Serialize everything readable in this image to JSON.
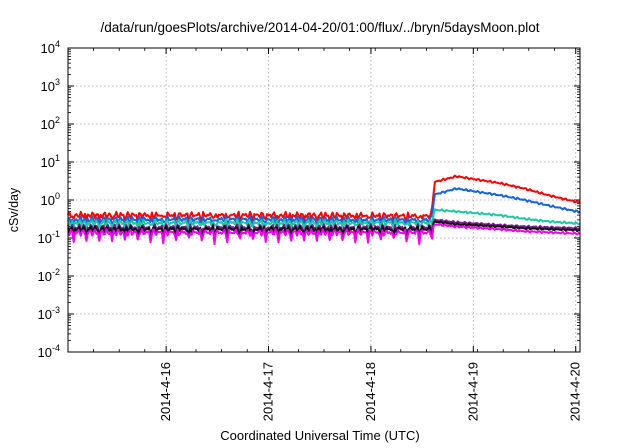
{
  "chart_data": {
    "type": "line",
    "title": "/data/run/goesPlots/archive/2014-04-20/01:00/flux/../bryn/5daysMoon.plot",
    "xlabel": "Coordinated Universal Time (UTC)",
    "ylabel": "cSv/day",
    "xlim": [
      "2014-04-15T01:00",
      "2014-04-20T01:00"
    ],
    "ylim": [
      0.0001,
      10000
    ],
    "yscale": "log",
    "grid": true,
    "x_ticks": [
      "2014-4-16",
      "2014-4-17",
      "2014-4-18",
      "2014-4-19",
      "2014-4-20"
    ],
    "y_ticks": [
      {
        "value": 0.0001,
        "base": "10",
        "exp": "-4"
      },
      {
        "value": 0.001,
        "base": "10",
        "exp": "-3"
      },
      {
        "value": 0.01,
        "base": "10",
        "exp": "-2"
      },
      {
        "value": 0.1,
        "base": "10",
        "exp": "-1"
      },
      {
        "value": 1,
        "base": "10",
        "exp": "0"
      },
      {
        "value": 10,
        "base": "10",
        "exp": "1"
      },
      {
        "value": 100,
        "base": "10",
        "exp": "2"
      },
      {
        "value": 1000,
        "base": "10",
        "exp": "3"
      },
      {
        "value": 10000,
        "base": "10",
        "exp": "4"
      }
    ],
    "series": [
      {
        "color": "#ff0000",
        "x": [
          "2014-04-15T01:00",
          "2014-04-16T00:00",
          "2014-04-17T00:00",
          "2014-04-18T00:00",
          "2014-04-18T14:00",
          "2014-04-18T15:00",
          "2014-04-18T20:00",
          "2014-04-19T06:00",
          "2014-04-19T12:00",
          "2014-04-19T18:00",
          "2014-04-20T01:00"
        ],
        "values": [
          0.4,
          0.4,
          0.4,
          0.39,
          0.38,
          3.0,
          4.2,
          2.8,
          2.0,
          1.3,
          0.85
        ]
      },
      {
        "color": "#1565e0",
        "x": [
          "2014-04-15T01:00",
          "2014-04-16T00:00",
          "2014-04-17T00:00",
          "2014-04-18T00:00",
          "2014-04-18T14:00",
          "2014-04-18T15:00",
          "2014-04-18T20:00",
          "2014-04-19T06:00",
          "2014-04-19T12:00",
          "2014-04-19T18:00",
          "2014-04-20T01:00"
        ],
        "values": [
          0.3,
          0.31,
          0.31,
          0.3,
          0.3,
          1.4,
          2.0,
          1.35,
          1.0,
          0.7,
          0.48
        ]
      },
      {
        "color": "#1ec8a0",
        "x": [
          "2014-04-15T01:00",
          "2014-04-16T00:00",
          "2014-04-17T00:00",
          "2014-04-18T00:00",
          "2014-04-18T14:00",
          "2014-04-18T15:00",
          "2014-04-18T20:00",
          "2014-04-19T06:00",
          "2014-04-19T12:00",
          "2014-04-19T18:00",
          "2014-04-20T01:00"
        ],
        "values": [
          0.25,
          0.25,
          0.25,
          0.25,
          0.25,
          0.55,
          0.5,
          0.4,
          0.32,
          0.27,
          0.24
        ]
      },
      {
        "color": "#7a1a8c",
        "x": [
          "2014-04-15T01:00",
          "2014-04-16T00:00",
          "2014-04-17T00:00",
          "2014-04-18T00:00",
          "2014-04-18T14:00",
          "2014-04-18T15:00",
          "2014-04-18T20:00",
          "2014-04-19T06:00",
          "2014-04-19T12:00",
          "2014-04-19T18:00",
          "2014-04-20T01:00"
        ],
        "values": [
          0.19,
          0.19,
          0.19,
          0.19,
          0.19,
          0.3,
          0.26,
          0.22,
          0.2,
          0.19,
          0.18
        ]
      },
      {
        "color": "#111111",
        "x": [
          "2014-04-15T01:00",
          "2014-04-16T00:00",
          "2014-04-17T00:00",
          "2014-04-18T00:00",
          "2014-04-18T14:00",
          "2014-04-18T15:00",
          "2014-04-18T20:00",
          "2014-04-19T06:00",
          "2014-04-19T12:00",
          "2014-04-19T18:00",
          "2014-04-20T01:00"
        ],
        "values": [
          0.17,
          0.17,
          0.17,
          0.17,
          0.17,
          0.27,
          0.23,
          0.2,
          0.18,
          0.17,
          0.16
        ]
      },
      {
        "color": "#ee00ee",
        "x": [
          "2014-04-15T01:00",
          "2014-04-16T00:00",
          "2014-04-17T00:00",
          "2014-04-18T00:00",
          "2014-04-18T14:00",
          "2014-04-18T15:00",
          "2014-04-18T20:00",
          "2014-04-19T06:00",
          "2014-04-19T12:00",
          "2014-04-19T18:00",
          "2014-04-20T01:00"
        ],
        "values": [
          0.14,
          0.14,
          0.14,
          0.14,
          0.14,
          0.23,
          0.2,
          0.17,
          0.15,
          0.14,
          0.13
        ]
      }
    ]
  }
}
